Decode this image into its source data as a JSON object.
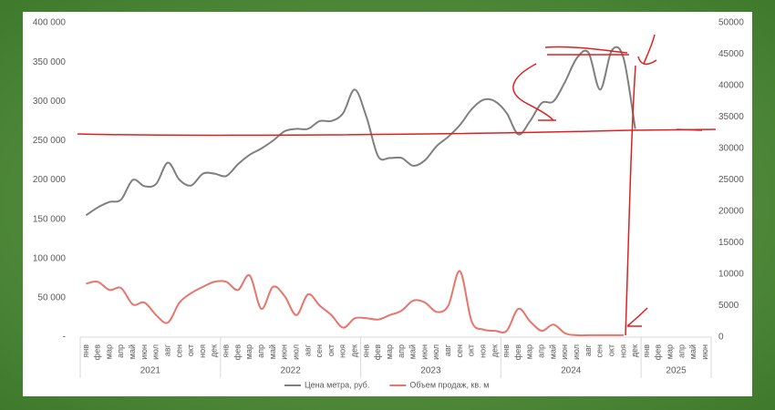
{
  "chart_data": {
    "type": "line",
    "categories": [
      "янв",
      "фев",
      "мар",
      "апр",
      "май",
      "июн",
      "июл",
      "авг",
      "сен",
      "окт",
      "ноя",
      "дек",
      "янв",
      "фев",
      "мар",
      "апр",
      "май",
      "июн",
      "июл",
      "авг",
      "сен",
      "окт",
      "ноя",
      "дек",
      "янв",
      "фев",
      "мар",
      "апр",
      "май",
      "июн",
      "июл",
      "авг",
      "сен",
      "окт",
      "ноя",
      "дек",
      "янв",
      "фев",
      "мар",
      "апр",
      "май",
      "июн",
      "июл",
      "авг",
      "сен",
      "окт",
      "ноя",
      "дек",
      "янв",
      "фев",
      "мар",
      "апр",
      "май",
      "июн"
    ],
    "years": [
      "2021",
      "2022",
      "2023",
      "2024",
      "2025"
    ],
    "series": [
      {
        "name": "Цена метра, руб.",
        "color": "#7f7f7f",
        "axis": "y",
        "values": [
          155000,
          165000,
          172000,
          175000,
          200000,
          192000,
          195000,
          222000,
          200000,
          193000,
          208000,
          208000,
          205000,
          220000,
          232000,
          240000,
          250000,
          262000,
          265000,
          265000,
          275000,
          275000,
          285000,
          315000,
          280000,
          230000,
          228000,
          228000,
          218000,
          225000,
          243000,
          255000,
          270000,
          290000,
          302000,
          300000,
          285000,
          258000,
          275000,
          298000,
          300000,
          325000,
          355000,
          362000,
          315000,
          365000,
          355000,
          265000,
          null,
          null,
          null,
          null,
          null,
          null
        ]
      },
      {
        "name": "Объем продаж, кв. м",
        "color": "#e8756c",
        "axis": "y2",
        "values": [
          8500,
          8800,
          7500,
          7800,
          5200,
          5500,
          3500,
          2300,
          5500,
          7000,
          8000,
          8800,
          8800,
          7500,
          9800,
          4500,
          8000,
          6500,
          3500,
          6800,
          5000,
          3500,
          1500,
          3000,
          3000,
          2800,
          3500,
          4200,
          5800,
          5500,
          4000,
          5000,
          10500,
          2500,
          1200,
          1000,
          1000,
          4500,
          2500,
          1000,
          2000,
          600,
          300,
          300,
          300,
          300,
          300,
          null,
          null,
          null,
          null,
          null,
          null,
          null
        ]
      }
    ],
    "ylim": [
      0,
      400000
    ],
    "yticks": [
      {
        "value": 0,
        "label": "-"
      },
      {
        "value": 50000,
        "label": "50 000"
      },
      {
        "value": 100000,
        "label": "100 000"
      },
      {
        "value": 150000,
        "label": "150 000"
      },
      {
        "value": 200000,
        "label": "200 000"
      },
      {
        "value": 250000,
        "label": "250 000"
      },
      {
        "value": 300000,
        "label": "300 000"
      },
      {
        "value": 350000,
        "label": "350 000"
      },
      {
        "value": 400000,
        "label": "400 000"
      }
    ],
    "y2lim": [
      0,
      50000
    ],
    "y2ticks": [
      0,
      5000,
      10000,
      15000,
      20000,
      25000,
      30000,
      35000,
      40000,
      45000,
      50000
    ],
    "legend": "bottom"
  }
}
